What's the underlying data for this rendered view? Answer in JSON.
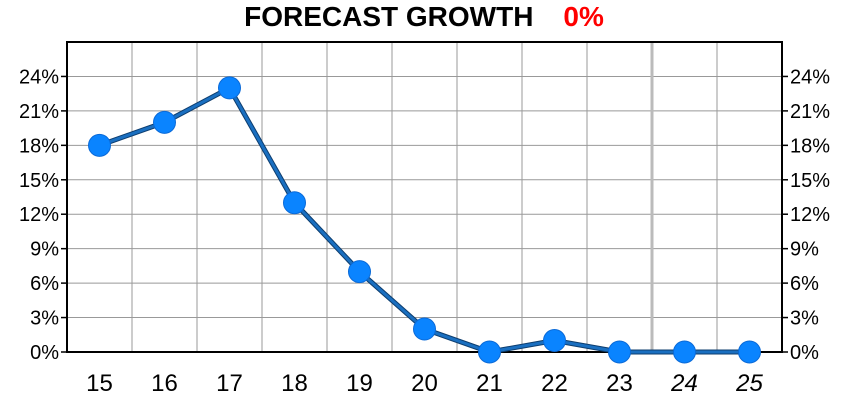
{
  "chart_data": {
    "type": "line",
    "title": "FORECAST GROWTH",
    "title_value": "0%",
    "categories": [
      "15",
      "16",
      "17",
      "18",
      "19",
      "20",
      "21",
      "22",
      "23",
      "24",
      "25"
    ],
    "forecast_categories": [
      "24",
      "25"
    ],
    "series": [
      {
        "values": [
          18,
          20,
          23,
          13,
          7,
          2,
          0,
          1,
          0,
          0,
          0
        ]
      }
    ],
    "ylim": [
      0,
      27
    ],
    "yticks": [
      0,
      3,
      6,
      9,
      12,
      15,
      18,
      21,
      24
    ],
    "ytick_labels": [
      "0%",
      "3%",
      "6%",
      "9%",
      "12%",
      "15%",
      "18%",
      "21%",
      "24%"
    ],
    "y_axes": [
      "left",
      "right"
    ],
    "grid": true,
    "colors": {
      "line": "#1a6fc0",
      "marker": "#0a84ff",
      "title_value": "#ff0000",
      "grid": "#999999",
      "frame": "#000000"
    }
  }
}
